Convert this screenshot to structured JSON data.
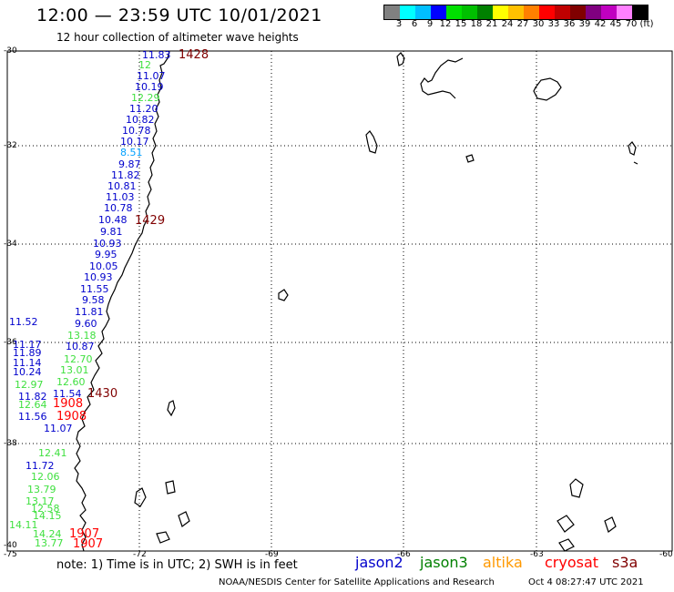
{
  "header": {
    "title": "12:00 — 23:59 UTC 10/01/2021",
    "subtitle": "12 hour collection of altimeter wave heights"
  },
  "colorbar": {
    "colors": [
      "#808080",
      "#00ffff",
      "#00bfff",
      "#0000ff",
      "#00e000",
      "#00c000",
      "#008000",
      "#ffff00",
      "#ffc000",
      "#ff8000",
      "#ff0000",
      "#c00000",
      "#800000",
      "#800080",
      "#c000c0",
      "#ff80ff",
      "#000000"
    ],
    "labels": [
      "3",
      "6",
      "9",
      "12",
      "15",
      "18",
      "21",
      "24",
      "27",
      "30",
      "33",
      "36",
      "39",
      "42",
      "45",
      "70",
      "(ft)"
    ]
  },
  "axes": {
    "lat_labels": [
      "-30",
      "-32",
      "-34",
      "-36",
      "-38",
      "-40"
    ],
    "lon_labels": [
      "-75",
      "-72",
      "-69",
      "-66",
      "-63",
      "-60"
    ]
  },
  "times": [
    {
      "text": "1428",
      "color": "#800000"
    },
    {
      "text": "1429",
      "color": "#800000"
    },
    {
      "text": "1430",
      "color": "#800000"
    },
    {
      "text": "1908",
      "color": "#ff0000"
    },
    {
      "text": "1908",
      "color": "#ff0000"
    },
    {
      "text": "1907",
      "color": "#ff0000"
    },
    {
      "text": "1907",
      "color": "#ff0000"
    }
  ],
  "wave_heights": [
    {
      "text": "11.83",
      "color": "#0000cc"
    },
    {
      "text": "12",
      "color": "#40e040"
    },
    {
      "text": "11.07",
      "color": "#0000cc"
    },
    {
      "text": "10.19",
      "color": "#0000cc"
    },
    {
      "text": "12.29",
      "color": "#40e040"
    },
    {
      "text": "11.20",
      "color": "#0000cc"
    },
    {
      "text": "10.82",
      "color": "#0000cc"
    },
    {
      "text": "10.78",
      "color": "#0000cc"
    },
    {
      "text": "10.17",
      "color": "#0000cc"
    },
    {
      "text": "8.51",
      "color": "#00a0ff"
    },
    {
      "text": "9.87",
      "color": "#0000cc"
    },
    {
      "text": "11.82",
      "color": "#0000cc"
    },
    {
      "text": "10.81",
      "color": "#0000cc"
    },
    {
      "text": "11.03",
      "color": "#0000cc"
    },
    {
      "text": "10.78",
      "color": "#0000cc"
    },
    {
      "text": "10.48",
      "color": "#0000cc"
    },
    {
      "text": "9.81",
      "color": "#0000cc"
    },
    {
      "text": "10.93",
      "color": "#0000cc"
    },
    {
      "text": "9.95",
      "color": "#0000cc"
    },
    {
      "text": "10.05",
      "color": "#0000cc"
    },
    {
      "text": "10.93",
      "color": "#0000cc"
    },
    {
      "text": "11.55",
      "color": "#0000cc"
    },
    {
      "text": "9.58",
      "color": "#0000cc"
    },
    {
      "text": "11.81",
      "color": "#0000cc"
    },
    {
      "text": "11.52",
      "color": "#0000cc"
    },
    {
      "text": "9.60",
      "color": "#0000cc"
    },
    {
      "text": "13.18",
      "color": "#40e040"
    },
    {
      "text": "11.17",
      "color": "#0000cc"
    },
    {
      "text": "10.87",
      "color": "#0000cc"
    },
    {
      "text": "11.89",
      "color": "#0000cc"
    },
    {
      "text": "12.70",
      "color": "#40e040"
    },
    {
      "text": "11.14",
      "color": "#0000cc"
    },
    {
      "text": "13.01",
      "color": "#40e040"
    },
    {
      "text": "10.24",
      "color": "#0000cc"
    },
    {
      "text": "12.60",
      "color": "#40e040"
    },
    {
      "text": "12.97",
      "color": "#40e040"
    },
    {
      "text": "11.82",
      "color": "#0000cc"
    },
    {
      "text": "11.54",
      "color": "#0000cc"
    },
    {
      "text": "12.64",
      "color": "#40e040"
    },
    {
      "text": "11.56",
      "color": "#0000cc"
    },
    {
      "text": "11.07",
      "color": "#0000cc"
    },
    {
      "text": "12.41",
      "color": "#40e040"
    },
    {
      "text": "11.72",
      "color": "#0000cc"
    },
    {
      "text": "12.06",
      "color": "#40e040"
    },
    {
      "text": "13.79",
      "color": "#40e040"
    },
    {
      "text": "13.17",
      "color": "#40e040"
    },
    {
      "text": "12.58",
      "color": "#40e040"
    },
    {
      "text": "14.15",
      "color": "#40e040"
    },
    {
      "text": "14.11",
      "color": "#40e040"
    },
    {
      "text": "14.24",
      "color": "#40e040"
    },
    {
      "text": "13.77",
      "color": "#40e040"
    }
  ],
  "legend": [
    {
      "name": "jason2",
      "color": "#0000cc"
    },
    {
      "name": "jason3",
      "color": "#008000"
    },
    {
      "name": "altika",
      "color": "#ff9900"
    },
    {
      "name": "cryosat",
      "color": "#ff0000"
    },
    {
      "name": "s3a",
      "color": "#800000"
    }
  ],
  "note": "note: 1) Time is in UTC; 2) SWH is in feet",
  "footer": {
    "agency": "NOAA/NESDIS Center for Satellite Applications and Research",
    "generated": "Oct  4 08:27:47 UTC 2021"
  }
}
